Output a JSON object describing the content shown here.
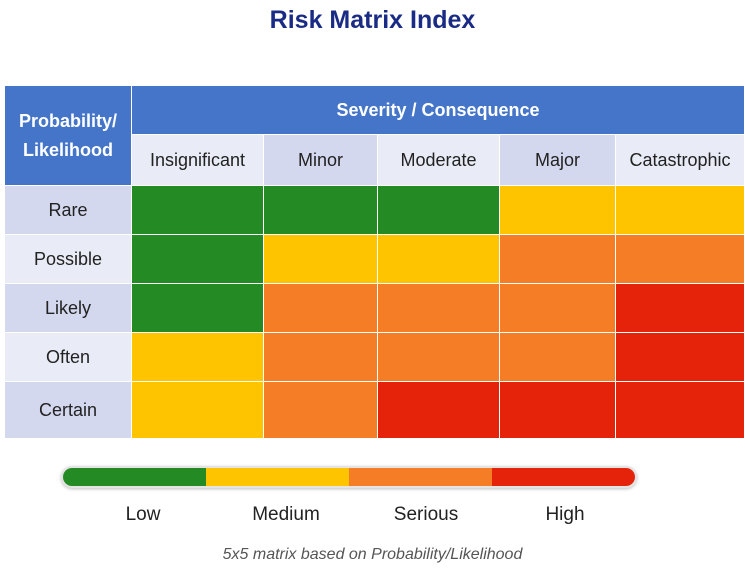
{
  "title": "Risk Matrix Index",
  "header": {
    "corner_line1": "Probability/",
    "corner_line2": "Likelihood",
    "severity": "Severity / Consequence"
  },
  "severity_levels": [
    "Insignificant",
    "Minor",
    "Moderate",
    "Major",
    "Catastrophic"
  ],
  "probability_levels": [
    "Rare",
    "Possible",
    "Likely",
    "Often",
    "Certain"
  ],
  "risk_colors": {
    "Low": "#248a24",
    "Medium": "#ffc400",
    "Serious": "#f57d25",
    "High": "#e5230b"
  },
  "grid": [
    [
      "Low",
      "Low",
      "Low",
      "Medium",
      "Medium"
    ],
    [
      "Low",
      "Medium",
      "Medium",
      "Serious",
      "Serious"
    ],
    [
      "Low",
      "Serious",
      "Serious",
      "Serious",
      "High"
    ],
    [
      "Medium",
      "Serious",
      "Serious",
      "Serious",
      "High"
    ],
    [
      "Medium",
      "Serious",
      "High",
      "High",
      "High"
    ]
  ],
  "legend": [
    "Low",
    "Medium",
    "Serious",
    "High"
  ],
  "footnote": "5x5 matrix based on Probability/Likelihood"
}
